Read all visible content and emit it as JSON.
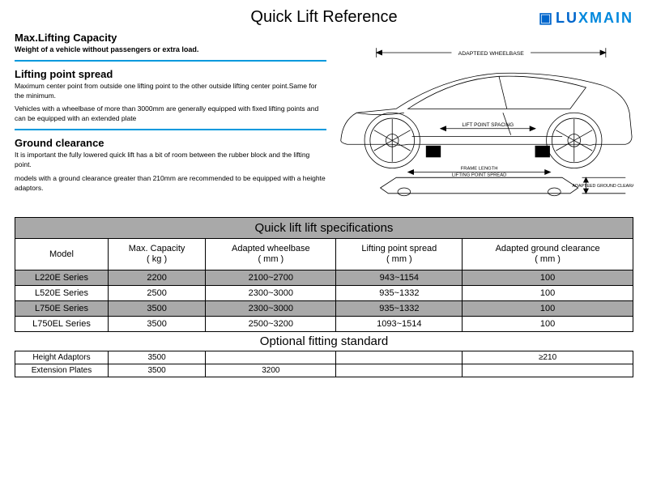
{
  "title": "Quick Lift Reference",
  "brand": {
    "icon": "▣",
    "part1": "LU",
    "part2": "XMAIN"
  },
  "sections": {
    "s1": {
      "heading": "Max.Lifting Capacity",
      "sub": "Weight of a vehicle without passengers or extra load."
    },
    "s2": {
      "heading": "Lifting point spread",
      "p1": "Maximum center point from outside one lifting point to the other outside lifting center point.Same for the minimum.",
      "p2": "Vehicles with a wheelbase of more than 3000mm are generally equipped with fixed lifting points and can be equipped with an extended plate"
    },
    "s3": {
      "heading": "Ground clearance",
      "p1": "It is important the fully lowered quick lift has a bit of room between the rubber block and the lifting point.",
      "p2": "models with a ground clearance greater than 210mm are recommended to be equipped with a heighte adaptors."
    }
  },
  "diagram": {
    "wheelbase_label": "ADAPTEED WHEELBASE",
    "lift_point_label": "LIFT POINT SPACING",
    "frame_length_label": "FRAME LENGTH",
    "lift_spread_label": "LIFTING POINT SPREAD",
    "clearance_label": "ADAPTEED GROUND CLEARANCE",
    "stroke": "#000000",
    "fill": "#ffffff"
  },
  "table1": {
    "title": "Quick lift lift specifications",
    "headers": [
      "Model",
      "Max. Capacity\n( kg )",
      "Adapted wheelbase\n( mm )",
      "Lifting point spread\n( mm )",
      "Adapted ground clearance\n( mm )"
    ],
    "rows": [
      {
        "alt": true,
        "cells": [
          "L220E Series",
          "2200",
          "2100~2700",
          "943~1154",
          "100"
        ]
      },
      {
        "alt": false,
        "cells": [
          "L520E Series",
          "2500",
          "2300~3000",
          "935~1332",
          "100"
        ]
      },
      {
        "alt": true,
        "cells": [
          "L750E Series",
          "3500",
          "2300~3000",
          "935~1332",
          "100"
        ]
      },
      {
        "alt": false,
        "cells": [
          "L750EL Series",
          "3500",
          "2500~3200",
          "1093~1514",
          "100"
        ]
      }
    ]
  },
  "table2": {
    "title": "Optional fitting standard",
    "rows": [
      {
        "cells": [
          "Height Adaptors",
          "3500",
          "",
          "",
          "≥210"
        ]
      },
      {
        "cells": [
          "Extension Plates",
          "3500",
          "3200",
          "",
          ""
        ]
      }
    ]
  }
}
